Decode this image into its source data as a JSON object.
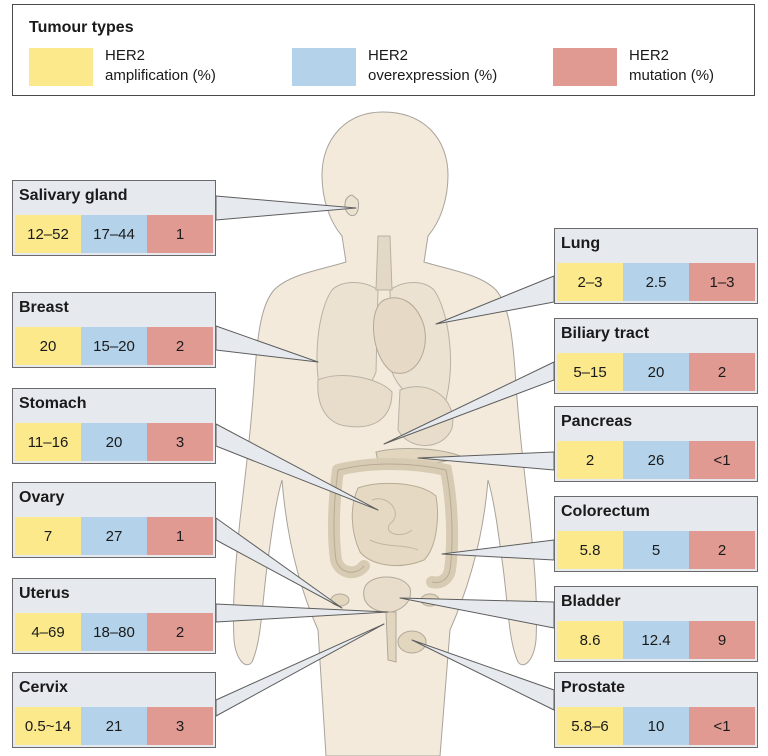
{
  "legend": {
    "title": "Tumour types",
    "items": [
      {
        "label": "HER2\namplification (%)",
        "color": "#fbe98c"
      },
      {
        "label": "HER2\noverexpression (%)",
        "color": "#b4d3ea"
      },
      {
        "label": "HER2\nmutation (%)",
        "color": "#e09a92"
      }
    ]
  },
  "colors": {
    "amplification": "#fbe98c",
    "overexpression": "#b4d3ea",
    "mutation": "#e09a92",
    "panel": "#e6eaee",
    "body": "#f3eadb"
  },
  "tumours": [
    {
      "id": "salivary-gland",
      "name": "Salivary gland",
      "amplification": "12–52",
      "overexpression": "17–44",
      "mutation": "1"
    },
    {
      "id": "breast",
      "name": "Breast",
      "amplification": "20",
      "overexpression": "15–20",
      "mutation": "2"
    },
    {
      "id": "stomach",
      "name": "Stomach",
      "amplification": "11–16",
      "overexpression": "20",
      "mutation": "3"
    },
    {
      "id": "ovary",
      "name": "Ovary",
      "amplification": "7",
      "overexpression": "27",
      "mutation": "1"
    },
    {
      "id": "uterus",
      "name": "Uterus",
      "amplification": "4–69",
      "overexpression": "18–80",
      "mutation": "2"
    },
    {
      "id": "cervix",
      "name": "Cervix",
      "amplification": "0.5~14",
      "overexpression": "21",
      "mutation": "3"
    },
    {
      "id": "lung",
      "name": "Lung",
      "amplification": "2–3",
      "overexpression": "2.5",
      "mutation": "1–3"
    },
    {
      "id": "biliary-tract",
      "name": "Biliary tract",
      "amplification": "5–15",
      "overexpression": "20",
      "mutation": "2"
    },
    {
      "id": "pancreas",
      "name": "Pancreas",
      "amplification": "2",
      "overexpression": "26",
      "mutation": "<1"
    },
    {
      "id": "colorectum",
      "name": "Colorectum",
      "amplification": "5.8",
      "overexpression": "5",
      "mutation": "2"
    },
    {
      "id": "bladder",
      "name": "Bladder",
      "amplification": "8.6",
      "overexpression": "12.4",
      "mutation": "9"
    },
    {
      "id": "prostate",
      "name": "Prostate",
      "amplification": "5.8–6",
      "overexpression": "10",
      "mutation": "<1"
    }
  ]
}
